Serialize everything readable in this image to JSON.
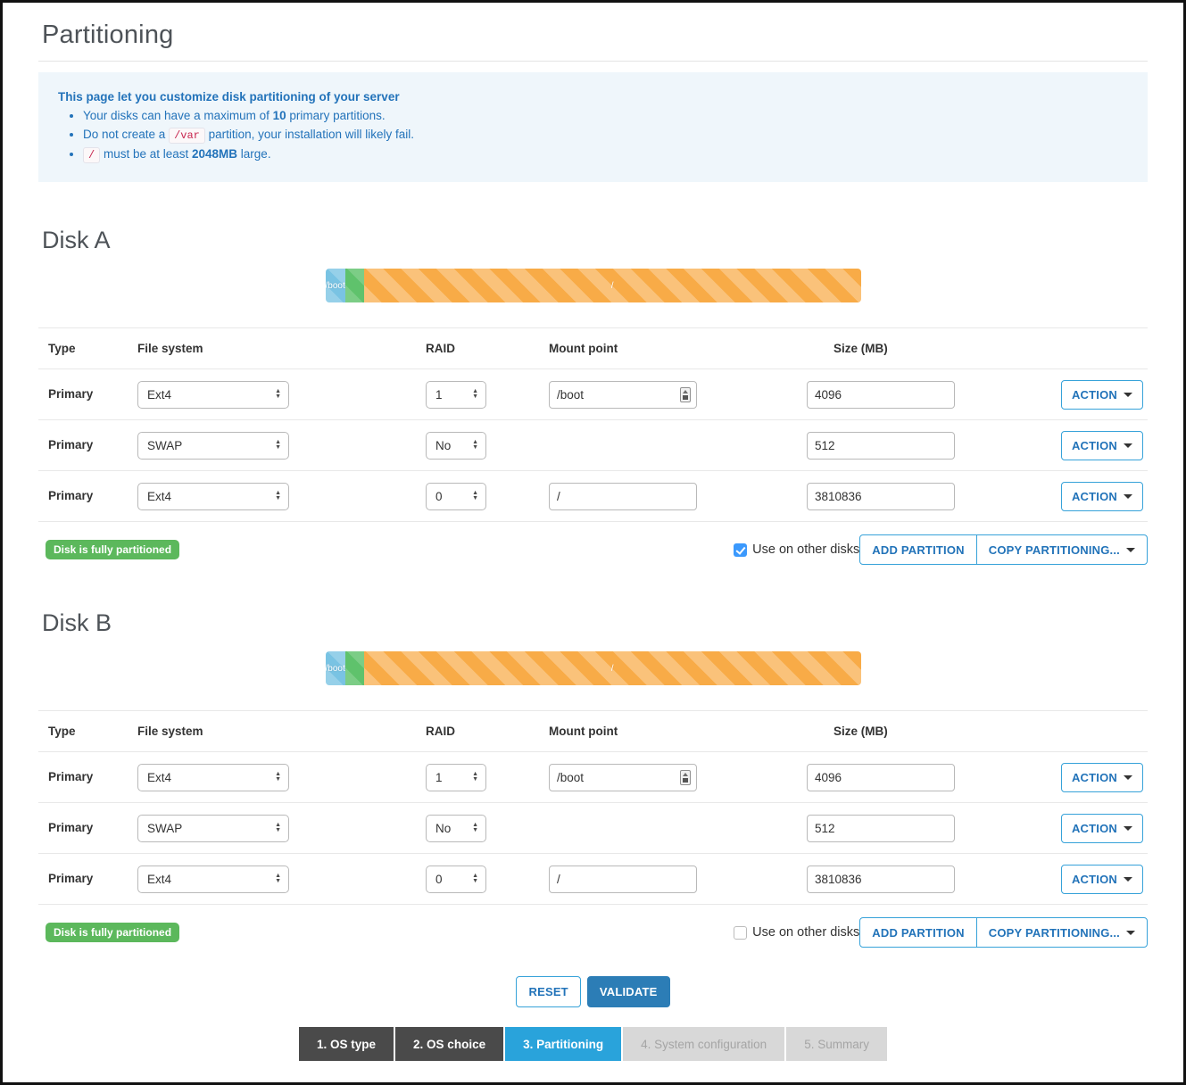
{
  "page": {
    "title": "Partitioning"
  },
  "info_box": {
    "heading": "This page let you customize disk partitioning of your server",
    "b1_pre": "Your disks can have a maximum of ",
    "b1_bold": "10",
    "b1_post": " primary partitions.",
    "b2_pre": "Do not create a ",
    "b2_code": "/var",
    "b2_post": " partition, your installation will likely fail.",
    "b3_code": "/",
    "b3_pre": " must be at least ",
    "b3_bold": "2048MB",
    "b3_post": " large."
  },
  "table_headers": {
    "type": "Type",
    "file_system": "File system",
    "raid": "RAID",
    "mount_point": "Mount point",
    "size": "Size (MB)"
  },
  "disks": [
    {
      "title": "Disk A",
      "bar": {
        "segments": [
          {
            "name": "boot",
            "label": "/boot",
            "color": "#79c3e3"
          },
          {
            "name": "swap",
            "label": "",
            "color": "#5fc26c"
          },
          {
            "name": "root",
            "label": "/",
            "color": "#f8ab47"
          }
        ]
      },
      "rows": [
        {
          "type": "Primary",
          "file_system": "Ext4",
          "raid": "1",
          "mount_point": "/boot",
          "size": "4096",
          "action_label": "ACTION"
        },
        {
          "type": "Primary",
          "file_system": "SWAP",
          "raid": "No",
          "mount_point": "",
          "size": "512",
          "action_label": "ACTION"
        },
        {
          "type": "Primary",
          "file_system": "Ext4",
          "raid": "0",
          "mount_point": "/",
          "size": "3810836",
          "action_label": "ACTION"
        }
      ],
      "status_badge": "Disk is fully partitioned",
      "use_on_other_disks": {
        "label": "Use on other disks",
        "state": "checked"
      },
      "add_partition_label": "ADD PARTITION",
      "copy_partitioning_label": "COPY PARTITIONING..."
    },
    {
      "title": "Disk B",
      "bar": {
        "segments": [
          {
            "name": "boot",
            "label": "/boot",
            "color": "#79c3e3"
          },
          {
            "name": "swap",
            "label": "",
            "color": "#5fc26c"
          },
          {
            "name": "root",
            "label": "/",
            "color": "#f8ab47"
          }
        ]
      },
      "rows": [
        {
          "type": "Primary",
          "file_system": "Ext4",
          "raid": "1",
          "mount_point": "/boot",
          "size": "4096",
          "action_label": "ACTION"
        },
        {
          "type": "Primary",
          "file_system": "SWAP",
          "raid": "No",
          "mount_point": "",
          "size": "512",
          "action_label": "ACTION"
        },
        {
          "type": "Primary",
          "file_system": "Ext4",
          "raid": "0",
          "mount_point": "/",
          "size": "3810836",
          "action_label": "ACTION"
        }
      ],
      "status_badge": "Disk is fully partitioned",
      "use_on_other_disks": {
        "label": "Use on other disks",
        "state": "unchecked"
      },
      "add_partition_label": "ADD PARTITION",
      "copy_partitioning_label": "COPY PARTITIONING..."
    }
  ],
  "footer": {
    "reset_label": "RESET",
    "validate_label": "VALIDATE"
  },
  "wizard_steps": [
    {
      "label": "1. OS type",
      "state": "done"
    },
    {
      "label": "2. OS choice",
      "state": "done"
    },
    {
      "label": "3. Partitioning",
      "state": "active"
    },
    {
      "label": "4. System configuration",
      "state": "disabled"
    },
    {
      "label": "5. Summary",
      "state": "disabled"
    }
  ],
  "colors": {
    "accent_blue": "#2273b9",
    "button_border_blue": "#36a2d9",
    "validate_blue": "#2c7db6",
    "step_active_blue": "#29a3db",
    "step_done_gray": "#4a4a4a",
    "badge_green": "#5cb85c",
    "bar_boot_blue": "#79c3e3",
    "bar_swap_green": "#5fc26c",
    "bar_root_orange": "#f8ab47",
    "info_text_blue": "#2373ba",
    "code_red": "#c7254e",
    "checkbox_blue": "#3b99fd"
  }
}
